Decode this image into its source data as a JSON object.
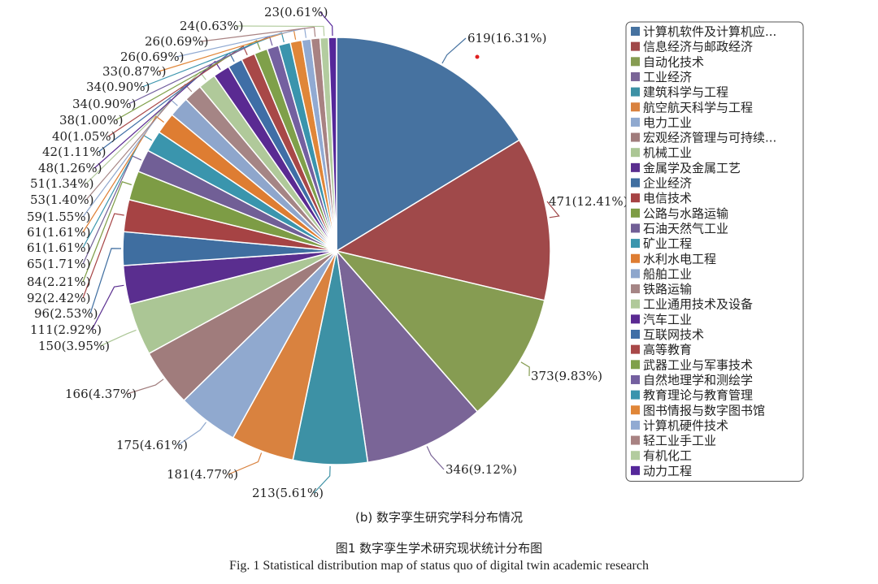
{
  "chart_data": {
    "type": "pie",
    "subtitle": "(b) 数字孪生研究学科分布情况",
    "legend_position": "right",
    "slices": [
      {
        "label": "计算机软件及计算机应...",
        "value": 619,
        "percent_label": "619(16.31%)",
        "color": "#4672a0"
      },
      {
        "label": "信息经济与邮政经济",
        "value": 471,
        "percent_label": "471(12.41%)",
        "color": "#a0494a"
      },
      {
        "label": "自动化技术",
        "value": 373,
        "percent_label": "373(9.83%)",
        "color": "#869c52"
      },
      {
        "label": "工业经济",
        "value": 346,
        "percent_label": "346(9.12%)",
        "color": "#7a6597"
      },
      {
        "label": "建筑科学与工程",
        "value": 213,
        "percent_label": "213(5.61%)",
        "color": "#3d91a5"
      },
      {
        "label": "航空航天科学与工程",
        "value": 181,
        "percent_label": "181(4.77%)",
        "color": "#d9823f"
      },
      {
        "label": "电力工业",
        "value": 175,
        "percent_label": "175(4.61%)",
        "color": "#90a9cf"
      },
      {
        "label": "宏观经济管理与可持续...",
        "value": 166,
        "percent_label": "166(4.37%)",
        "color": "#a07c7c"
      },
      {
        "label": "机械工业",
        "value": 150,
        "percent_label": "150(3.95%)",
        "color": "#abc695"
      },
      {
        "label": "金属学及金属工艺",
        "value": 111,
        "percent_label": "111(2.92%)",
        "color": "#5a2e8f"
      },
      {
        "label": "企业经济",
        "value": 96,
        "percent_label": "96(2.53%)",
        "color": "#3f6ea0"
      },
      {
        "label": "电信技术",
        "value": 92,
        "percent_label": "92(2.42%)",
        "color": "#a64344"
      },
      {
        "label": "公路与水路运输",
        "value": 84,
        "percent_label": "84(2.21%)",
        "color": "#7d9c45"
      },
      {
        "label": "石油天然气工业",
        "value": 65,
        "percent_label": "65(1.71%)",
        "color": "#715f96"
      },
      {
        "label": "矿业工程",
        "value": 61,
        "percent_label": "61(1.61%)",
        "color": "#3a95ad"
      },
      {
        "label": "水利水电工程",
        "value": 61,
        "percent_label": "61(1.61%)",
        "color": "#de7d32"
      },
      {
        "label": "船舶工业",
        "value": 59,
        "percent_label": "59(1.55%)",
        "color": "#8ea6cc"
      },
      {
        "label": "铁路运输",
        "value": 53,
        "percent_label": "53(1.40%)",
        "color": "#a58585"
      },
      {
        "label": "工业通用技术及设备",
        "value": 51,
        "percent_label": "51(1.34%)",
        "color": "#b0c99a"
      },
      {
        "label": "汽车工业",
        "value": 48,
        "percent_label": "48(1.26%)",
        "color": "#5a2a92"
      },
      {
        "label": "互联网技术",
        "value": 42,
        "percent_label": "42(1.11%)",
        "color": "#3f6ea6"
      },
      {
        "label": "高等教育",
        "value": 40,
        "percent_label": "40(1.05%)",
        "color": "#a84848"
      },
      {
        "label": "武器工业与军事技术",
        "value": 38,
        "percent_label": "38(1.00%)",
        "color": "#7fa04a"
      },
      {
        "label": "自然地理学和测绘学",
        "value": 34,
        "percent_label": "34(0.90%)",
        "color": "#7460a0"
      },
      {
        "label": "教育理论与教育管理",
        "value": 34,
        "percent_label": "34(0.90%)",
        "color": "#3a94ad"
      },
      {
        "label": "图书情报与数字图书馆",
        "value": 33,
        "percent_label": "33(0.87%)",
        "color": "#e08638"
      },
      {
        "label": "计算机硬件技术",
        "value": 26,
        "percent_label": "26(0.69%)",
        "color": "#91aad2"
      },
      {
        "label": "轻工业手工业",
        "value": 26,
        "percent_label": "26(0.69%)",
        "color": "#a88282"
      },
      {
        "label": "有机化工",
        "value": 24,
        "percent_label": "24(0.63%)",
        "color": "#b3cc9f"
      },
      {
        "label": "动力工程",
        "value": 23,
        "percent_label": "23(0.61%)",
        "color": "#55279a"
      }
    ]
  },
  "figure_caption_cn": "图1    数字孪生学术研究现状统计分布图",
  "figure_caption_en": "Fig. 1    Statistical distribution map of status quo of digital twin academic research"
}
